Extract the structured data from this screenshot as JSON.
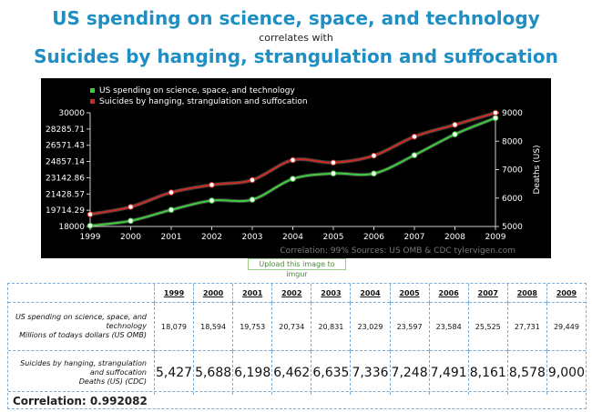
{
  "header": {
    "title_top": "US spending on science, space, and technology",
    "correlates_with": "correlates with",
    "title_bottom": "Suicides by hanging, strangulation and suffocation"
  },
  "chart_data": {
    "type": "line",
    "categories": [
      "1999",
      "2000",
      "2001",
      "2002",
      "2003",
      "2004",
      "2005",
      "2006",
      "2007",
      "2008",
      "2009"
    ],
    "series": [
      {
        "name": "US spending on science, space, and technology",
        "color": "#3ccc3c",
        "axis": "left",
        "values": [
          18079,
          18594,
          19753,
          20734,
          20831,
          23029,
          23597,
          23584,
          25525,
          27731,
          29449
        ]
      },
      {
        "name": "Suicides by hanging, strangulation and suffocation",
        "color": "#cc2a22",
        "axis": "right",
        "values": [
          5427,
          5688,
          6198,
          6462,
          6635,
          7336,
          7248,
          7491,
          8161,
          8578,
          9000
        ]
      }
    ],
    "left_ticks": [
      "30000",
      "28285.71",
      "26571.43",
      "24857.14",
      "23142.86",
      "21428.57",
      "19714.29",
      "18000"
    ],
    "left_ylim": [
      18000,
      30000
    ],
    "right_ticks": [
      "9000",
      "8000",
      "7000",
      "6000",
      "5000"
    ],
    "right_ylim": [
      5000,
      9000
    ],
    "right_label": "Deaths (US)",
    "footnote": "Correlation: 99%    Sources: US OMB & CDC  tylervigen.com",
    "legend_position": "top-left"
  },
  "upload_link": "Upload this image to imgur",
  "table": {
    "years": [
      "1999",
      "2000",
      "2001",
      "2002",
      "2003",
      "2004",
      "2005",
      "2006",
      "2007",
      "2008",
      "2009"
    ],
    "row1": {
      "label": "US spending on science, space, and technology",
      "unit": "Millions of todays dollars (US OMB)",
      "values": [
        "18,079",
        "18,594",
        "19,753",
        "20,734",
        "20,831",
        "23,029",
        "23,597",
        "23,584",
        "25,525",
        "27,731",
        "29,449"
      ]
    },
    "row2": {
      "label": "Suicides by hanging, strangulation and suffocation",
      "unit": "Deaths (US) (CDC)",
      "values": [
        "5,427",
        "5,688",
        "6,198",
        "6,462",
        "6,635",
        "7,336",
        "7,248",
        "7,491",
        "8,161",
        "8,578",
        "9,000"
      ]
    },
    "correlation": "Correlation: 0.992082"
  }
}
